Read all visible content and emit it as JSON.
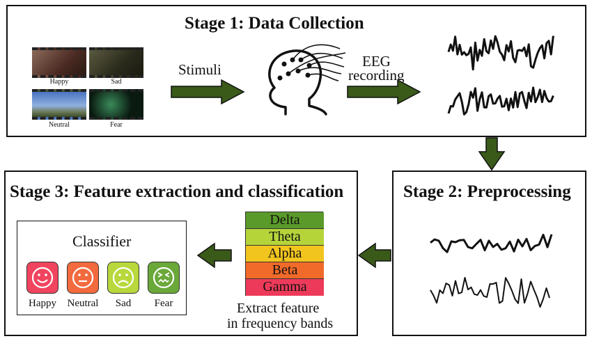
{
  "stage1": {
    "title": "Stage 1: Data Collection",
    "stimuli_label": "Stimuli",
    "recording_label_1": "EEG",
    "recording_label_2": "recording"
  },
  "thumbnails": [
    {
      "label": "Happy",
      "color": "#6b4a3a"
    },
    {
      "label": "Sad",
      "color": "#3c3a28"
    },
    {
      "label": "Neutral",
      "color": "#6d8fc5"
    },
    {
      "label": "Fear",
      "color": "#11201a"
    }
  ],
  "stage2": {
    "title": "Stage 2: Preprocessing"
  },
  "stage3": {
    "title": "Stage 3: Feature extraction and classification",
    "classifier_title": "Classifier",
    "caption_1": "Extract feature",
    "caption_2": "in frequency bands"
  },
  "bands": [
    {
      "label": "Delta",
      "color": "#5a9a2a"
    },
    {
      "label": "Theta",
      "color": "#b5d43a"
    },
    {
      "label": "Alpha",
      "color": "#f2c51e"
    },
    {
      "label": "Beta",
      "color": "#f26a2a"
    },
    {
      "label": "Gamma",
      "color": "#ee3a5a"
    }
  ],
  "emotions": [
    {
      "label": "Happy",
      "color": "#f0445f",
      "icon": "smile-face-icon"
    },
    {
      "label": "Neutral",
      "color": "#f26a3e",
      "icon": "neutral-face-icon"
    },
    {
      "label": "Sad",
      "color": "#b8d83c",
      "icon": "sad-face-icon"
    },
    {
      "label": "Fear",
      "color": "#6aa83a",
      "icon": "fear-face-icon"
    }
  ],
  "arrow_color": "#3a5a1a"
}
